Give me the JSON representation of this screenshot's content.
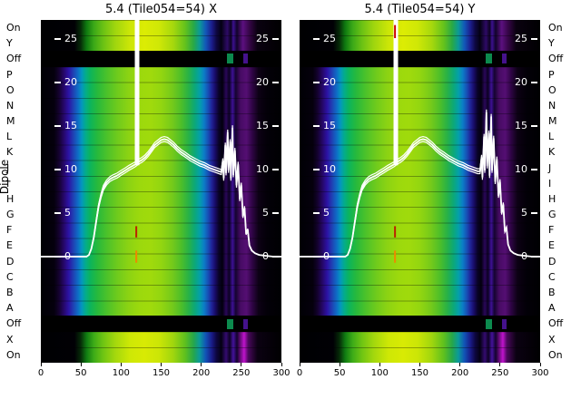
{
  "figure": {
    "background": "#ffffff",
    "plot_background": "#000000"
  },
  "panels": [
    {
      "id": "x",
      "title": "5.4 (Tile054=54) X"
    },
    {
      "id": "y",
      "title": "5.4 (Tile054=54) Y"
    }
  ],
  "axes": {
    "dipole_label": "Dipole"
  },
  "chart_data": {
    "type": "heatmap",
    "x_range": [
      0,
      300
    ],
    "x_ticks": [
      0,
      50,
      100,
      150,
      200,
      250,
      300
    ],
    "value_ticks": [
      25,
      20,
      15,
      10,
      5,
      0
    ],
    "value_range": [
      -12,
      27
    ],
    "rows": [
      "On",
      "Y",
      "Off",
      "P",
      "O",
      "N",
      "M",
      "L",
      "K",
      "J",
      "I",
      "H",
      "G",
      "F",
      "E",
      "D",
      "C",
      "B",
      "A",
      "Off",
      "X",
      "On"
    ],
    "colors": {
      "curve": "#ffffff",
      "background": "#000000"
    },
    "colormap_main": [
      [
        0.0,
        "#000004"
      ],
      [
        0.055,
        "#05000d"
      ],
      [
        0.075,
        "#14022e"
      ],
      [
        0.095,
        "#250767"
      ],
      [
        0.115,
        "#2c12a4"
      ],
      [
        0.135,
        "#1f41b4"
      ],
      [
        0.155,
        "#0e6ec6"
      ],
      [
        0.17,
        "#0497be"
      ],
      [
        0.185,
        "#03ab8e"
      ],
      [
        0.205,
        "#0cb45c"
      ],
      [
        0.235,
        "#27b93c"
      ],
      [
        0.275,
        "#4cc22a"
      ],
      [
        0.32,
        "#70cb1c"
      ],
      [
        0.365,
        "#8cd313"
      ],
      [
        0.41,
        "#9cd90d"
      ],
      [
        0.455,
        "#a0da0c"
      ],
      [
        0.5,
        "#93d610"
      ],
      [
        0.545,
        "#76ca1a"
      ],
      [
        0.585,
        "#4cbe2a"
      ],
      [
        0.615,
        "#27b148"
      ],
      [
        0.64,
        "#0ca878"
      ],
      [
        0.66,
        "#04a0a8"
      ],
      [
        0.678,
        "#0b7ec6"
      ],
      [
        0.695,
        "#1750b6"
      ],
      [
        0.71,
        "#202499"
      ],
      [
        0.725,
        "#180b66"
      ],
      [
        0.74,
        "#090327"
      ],
      [
        0.755,
        "#03000f"
      ],
      [
        0.77,
        "#2a0759"
      ],
      [
        0.783,
        "#0b0122"
      ],
      [
        0.797,
        "#3e1095"
      ],
      [
        0.81,
        "#140430"
      ],
      [
        0.83,
        "#470b64"
      ],
      [
        0.855,
        "#540e72"
      ],
      [
        0.878,
        "#300547"
      ],
      [
        0.905,
        "#0d0115"
      ],
      [
        0.94,
        "#030008"
      ],
      [
        1.0,
        "#000002"
      ]
    ],
    "colormap_top": [
      [
        0.0,
        "#000002"
      ],
      [
        0.14,
        "#010005"
      ],
      [
        0.165,
        "#062a08"
      ],
      [
        0.19,
        "#0f7a10"
      ],
      [
        0.22,
        "#3aa818"
      ],
      [
        0.26,
        "#6cc214"
      ],
      [
        0.31,
        "#a0d60e"
      ],
      [
        0.37,
        "#cce607"
      ],
      [
        0.43,
        "#dcec04"
      ],
      [
        0.49,
        "#d0e806"
      ],
      [
        0.55,
        "#a6d80d"
      ],
      [
        0.6,
        "#64c21c"
      ],
      [
        0.635,
        "#28a846"
      ],
      [
        0.66,
        "#0b9a96"
      ],
      [
        0.685,
        "#1258b8"
      ],
      [
        0.71,
        "#1c1e8e"
      ],
      [
        0.73,
        "#0e0742"
      ],
      [
        0.75,
        "#040113"
      ],
      [
        0.775,
        "#2e0a66"
      ],
      [
        0.79,
        "#0c0220"
      ],
      [
        0.8,
        "#3c1090"
      ],
      [
        0.815,
        "#11032a"
      ],
      [
        0.84,
        "#5c1080"
      ],
      [
        0.865,
        "#38064a"
      ],
      [
        0.9,
        "#0a0110"
      ],
      [
        1.0,
        "#000001"
      ]
    ],
    "colormap_bottom": [
      [
        0.0,
        "#000002"
      ],
      [
        0.14,
        "#010005"
      ],
      [
        0.165,
        "#062a08"
      ],
      [
        0.19,
        "#107c12"
      ],
      [
        0.22,
        "#3cab18"
      ],
      [
        0.26,
        "#70c513"
      ],
      [
        0.31,
        "#a4d80d"
      ],
      [
        0.37,
        "#cee805"
      ],
      [
        0.43,
        "#d8ea04"
      ],
      [
        0.49,
        "#cce606"
      ],
      [
        0.55,
        "#a0d60e"
      ],
      [
        0.6,
        "#5ec01e"
      ],
      [
        0.635,
        "#25a64c"
      ],
      [
        0.66,
        "#0a9a9a"
      ],
      [
        0.685,
        "#1154b6"
      ],
      [
        0.71,
        "#1a1c8a"
      ],
      [
        0.73,
        "#0d0640"
      ],
      [
        0.75,
        "#040112"
      ],
      [
        0.77,
        "#340b70"
      ],
      [
        0.785,
        "#0d0224"
      ],
      [
        0.8,
        "#44129c"
      ],
      [
        0.815,
        "#13032e"
      ],
      [
        0.845,
        "#c014cc"
      ],
      [
        0.862,
        "#4a085c"
      ],
      [
        0.9,
        "#0b0112"
      ],
      [
        1.0,
        "#000001"
      ]
    ],
    "off_segments": [
      {
        "f0": 0.775,
        "f1": 0.8,
        "color": "#0c8a4e"
      },
      {
        "f0": 0.843,
        "f1": 0.86,
        "color": "#45128c"
      }
    ],
    "spike": {
      "x": 120,
      "base": 10.5,
      "top": 29.5
    },
    "overlay": {
      "x": {
        "points": [
          [
            0,
            0
          ],
          [
            30,
            0
          ],
          [
            50,
            0
          ],
          [
            57,
            0
          ],
          [
            60,
            0.2
          ],
          [
            63,
            0.9
          ],
          [
            66,
            2.2
          ],
          [
            69,
            4
          ],
          [
            72,
            5.8
          ],
          [
            75,
            7
          ],
          [
            78,
            7.9
          ],
          [
            82,
            8.5
          ],
          [
            86,
            8.9
          ],
          [
            90,
            9.1
          ],
          [
            95,
            9.3
          ],
          [
            100,
            9.6
          ],
          [
            105,
            9.9
          ],
          [
            110,
            10.2
          ],
          [
            114,
            10.4
          ],
          [
            118,
            10.6
          ],
          [
            122,
            10.9
          ],
          [
            126,
            11.1
          ],
          [
            130,
            11.4
          ],
          [
            134,
            11.8
          ],
          [
            138,
            12.3
          ],
          [
            142,
            12.8
          ],
          [
            146,
            13.1
          ],
          [
            150,
            13.4
          ],
          [
            154,
            13.5
          ],
          [
            158,
            13.4
          ],
          [
            162,
            13.1
          ],
          [
            166,
            12.8
          ],
          [
            170,
            12.4
          ],
          [
            175,
            12
          ],
          [
            180,
            11.7
          ],
          [
            186,
            11.3
          ],
          [
            192,
            11
          ],
          [
            198,
            10.7
          ],
          [
            204,
            10.5
          ],
          [
            210,
            10.2
          ],
          [
            216,
            10
          ],
          [
            222,
            9.8
          ],
          [
            225,
            9.7
          ],
          [
            227,
            11
          ],
          [
            228,
            9
          ],
          [
            230,
            12.8
          ],
          [
            231,
            9.6
          ],
          [
            233,
            14.3
          ],
          [
            234,
            9.9
          ],
          [
            236,
            13.2
          ],
          [
            237,
            9
          ],
          [
            239,
            14.8
          ],
          [
            240,
            9.4
          ],
          [
            242,
            12.2
          ],
          [
            244,
            8.2
          ],
          [
            246,
            10.6
          ],
          [
            248,
            6.6
          ],
          [
            250,
            8.2
          ],
          [
            252,
            4.6
          ],
          [
            254,
            5.6
          ],
          [
            256,
            2.6
          ],
          [
            258,
            3.1
          ],
          [
            260,
            1.3
          ],
          [
            263,
            0.7
          ],
          [
            267,
            0.4
          ],
          [
            272,
            0.2
          ],
          [
            280,
            0.1
          ],
          [
            290,
            0
          ],
          [
            300,
            0
          ]
        ]
      },
      "y": {
        "points": [
          [
            0,
            0
          ],
          [
            30,
            0
          ],
          [
            50,
            0
          ],
          [
            57,
            0
          ],
          [
            60,
            0.2
          ],
          [
            63,
            0.9
          ],
          [
            66,
            2.2
          ],
          [
            69,
            4
          ],
          [
            72,
            5.8
          ],
          [
            75,
            7
          ],
          [
            78,
            7.9
          ],
          [
            82,
            8.5
          ],
          [
            86,
            8.9
          ],
          [
            90,
            9.1
          ],
          [
            95,
            9.3
          ],
          [
            100,
            9.6
          ],
          [
            105,
            9.9
          ],
          [
            110,
            10.2
          ],
          [
            114,
            10.4
          ],
          [
            118,
            10.6
          ],
          [
            122,
            10.9
          ],
          [
            126,
            11.1
          ],
          [
            130,
            11.4
          ],
          [
            134,
            11.8
          ],
          [
            138,
            12.3
          ],
          [
            142,
            12.8
          ],
          [
            146,
            13.1
          ],
          [
            150,
            13.4
          ],
          [
            154,
            13.5
          ],
          [
            158,
            13.4
          ],
          [
            162,
            13.1
          ],
          [
            166,
            12.8
          ],
          [
            170,
            12.4
          ],
          [
            175,
            12
          ],
          [
            180,
            11.7
          ],
          [
            186,
            11.3
          ],
          [
            192,
            11
          ],
          [
            198,
            10.7
          ],
          [
            204,
            10.5
          ],
          [
            210,
            10.2
          ],
          [
            216,
            10
          ],
          [
            222,
            9.8
          ],
          [
            225,
            9.8
          ],
          [
            227,
            11.4
          ],
          [
            228,
            9.1
          ],
          [
            230,
            13.8
          ],
          [
            231,
            9.9
          ],
          [
            233,
            16.6
          ],
          [
            234,
            10.4
          ],
          [
            236,
            14.2
          ],
          [
            237,
            9.3
          ],
          [
            239,
            16.1
          ],
          [
            240,
            9.9
          ],
          [
            242,
            13.6
          ],
          [
            244,
            8.6
          ],
          [
            246,
            11.2
          ],
          [
            248,
            7
          ],
          [
            250,
            8.6
          ],
          [
            252,
            5
          ],
          [
            254,
            6
          ],
          [
            256,
            2.9
          ],
          [
            258,
            3.3
          ],
          [
            260,
            1.4
          ],
          [
            263,
            0.7
          ],
          [
            267,
            0.4
          ],
          [
            272,
            0.2
          ],
          [
            280,
            0.1
          ],
          [
            290,
            0
          ],
          [
            300,
            0
          ]
        ]
      }
    },
    "markers": {
      "x": [
        {
          "x": 119,
          "v1": 2.2,
          "v2": 3.5,
          "color": "#bb2200"
        },
        {
          "x": 119,
          "v1": -0.7,
          "v2": 0.7,
          "color": "#ee8800"
        }
      ],
      "y": [
        {
          "x": 119,
          "v1": 25.1,
          "v2": 26.6,
          "color": "#cc0000"
        },
        {
          "x": 119,
          "v1": 2.2,
          "v2": 3.5,
          "color": "#bb2200"
        },
        {
          "x": 119,
          "v1": -0.7,
          "v2": 0.7,
          "color": "#ee8800"
        }
      ]
    }
  }
}
